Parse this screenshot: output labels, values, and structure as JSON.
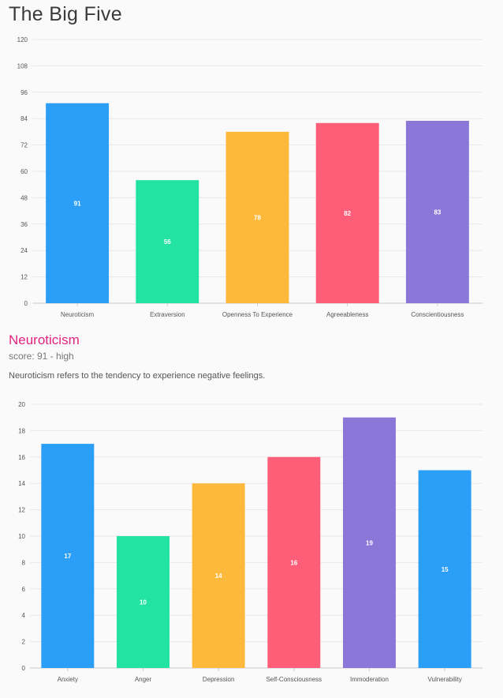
{
  "page": {
    "title": "The Big Five"
  },
  "section": {
    "title": "Neuroticism",
    "score": "score: 91 - high",
    "description": "Neuroticism refers to the tendency to experience negative feelings."
  },
  "colors": {
    "blue": "#2b9ef8",
    "green": "#23e3a2",
    "orange": "#fdb93c",
    "red": "#ff5e79",
    "purple": "#8a77d8",
    "grid": "#e8e8e8",
    "axis": "#cccccc",
    "tick_text": "#555555",
    "bar_label": "#ffffff"
  },
  "chart_data": [
    {
      "type": "bar",
      "title": "The Big Five",
      "categories": [
        "Neuroticism",
        "Extraversion",
        "Openness To Experience",
        "Agreeableness",
        "Conscientiousness"
      ],
      "values": [
        91,
        56,
        78,
        82,
        83
      ],
      "bar_colors": [
        "#2b9ef8",
        "#23e3a2",
        "#fdb93c",
        "#ff5e79",
        "#8a77d8"
      ],
      "ylim": [
        0,
        120
      ],
      "yticks": [
        0,
        12,
        24,
        36,
        48,
        60,
        72,
        84,
        96,
        108,
        120
      ],
      "xlabel": "",
      "ylabel": "",
      "grid": true,
      "data_labels": true
    },
    {
      "type": "bar",
      "title": "",
      "categories": [
        "Anxiety",
        "Anger",
        "Depression",
        "Self-Consciousness",
        "Immoderation",
        "Vulnerability"
      ],
      "values": [
        17,
        10,
        14,
        16,
        19,
        15
      ],
      "bar_colors": [
        "#2b9ef8",
        "#23e3a2",
        "#fdb93c",
        "#ff5e79",
        "#8a77d8",
        "#2b9ef8"
      ],
      "ylim": [
        0,
        20
      ],
      "yticks": [
        0,
        2,
        4,
        6,
        8,
        10,
        12,
        14,
        16,
        18,
        20
      ],
      "xlabel": "",
      "ylabel": "",
      "grid": true,
      "data_labels": true
    }
  ]
}
